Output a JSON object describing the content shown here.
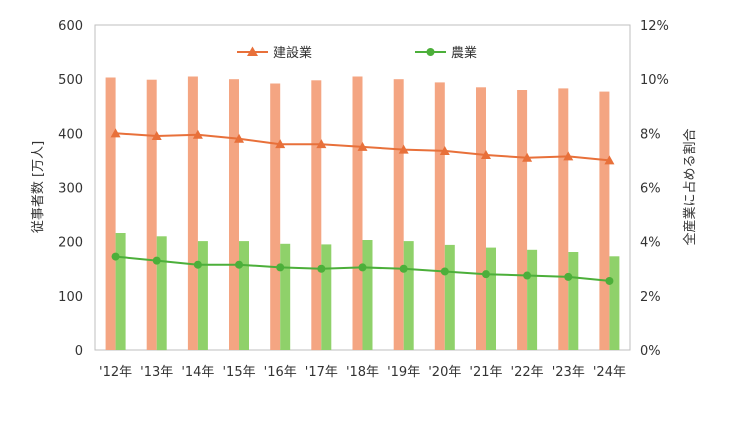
{
  "chart_data": {
    "type": "bar",
    "categories": [
      "'12年",
      "'13年",
      "'14年",
      "'15年",
      "'16年",
      "'17年",
      "'18年",
      "'19年",
      "'20年",
      "'21年",
      "'22年",
      "'23年",
      "'24年"
    ],
    "series": [
      {
        "name": "建設業",
        "kind": "bar",
        "axis": "left",
        "color": "#f4a582",
        "values": [
          503,
          499,
          505,
          500,
          492,
          498,
          505,
          500,
          494,
          485,
          480,
          483,
          477
        ]
      },
      {
        "name": "農業",
        "kind": "bar",
        "axis": "left",
        "color": "#8fd16a",
        "values": [
          216,
          210,
          201,
          201,
          196,
          195,
          203,
          201,
          194,
          189,
          185,
          181,
          173
        ]
      },
      {
        "name": "建設業",
        "kind": "line",
        "axis": "right",
        "color": "#e8703a",
        "marker": "triangle",
        "values": [
          8.0,
          7.9,
          7.95,
          7.8,
          7.6,
          7.6,
          7.5,
          7.4,
          7.35,
          7.2,
          7.1,
          7.15,
          7.0
        ]
      },
      {
        "name": "農業",
        "kind": "line",
        "axis": "right",
        "color": "#4caf3a",
        "marker": "circle",
        "values": [
          3.45,
          3.3,
          3.15,
          3.15,
          3.05,
          3.0,
          3.05,
          3.0,
          2.9,
          2.8,
          2.75,
          2.7,
          2.55
        ]
      }
    ],
    "ylabel": "従事者数 [万人]",
    "y2label": "全産業に占める割合",
    "ylim": [
      0,
      600
    ],
    "y2lim": [
      0,
      12
    ],
    "yticks": [
      "0",
      "100",
      "200",
      "300",
      "400",
      "500",
      "600"
    ],
    "y2ticks": [
      "0%",
      "2%",
      "4%",
      "6%",
      "8%",
      "10%",
      "12%"
    ],
    "legend": {
      "placement": "top-center",
      "items": [
        "建設業",
        "農業"
      ]
    },
    "grid": false
  }
}
